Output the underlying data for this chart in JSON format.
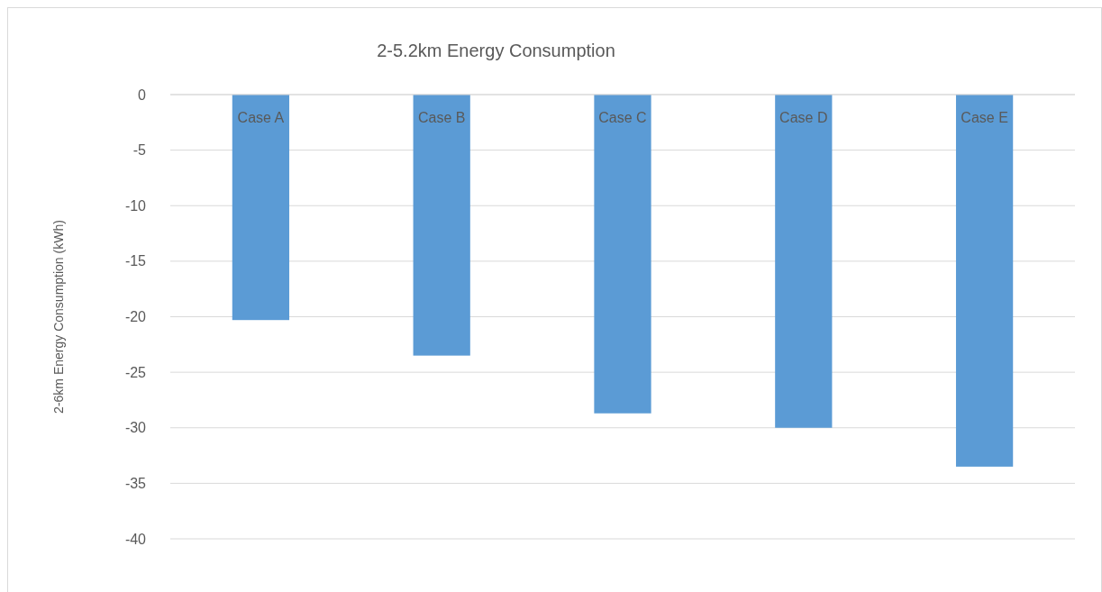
{
  "chart_data": {
    "type": "bar",
    "title": "2-5.2km Energy Consumption",
    "ylabel": "2-6km Energy Consumption (kWh)",
    "categories": [
      "Case A",
      "Case B",
      "Case C",
      "Case D",
      "Case E"
    ],
    "values": [
      -20.3,
      -23.5,
      -28.7,
      -30.0,
      -33.5
    ],
    "color": "#5b9bd5",
    "ylim": [
      -40,
      0
    ],
    "yticks": [
      -40,
      -35,
      -30,
      -25,
      -20,
      -15,
      -10,
      -5,
      0
    ],
    "grid": "y"
  }
}
